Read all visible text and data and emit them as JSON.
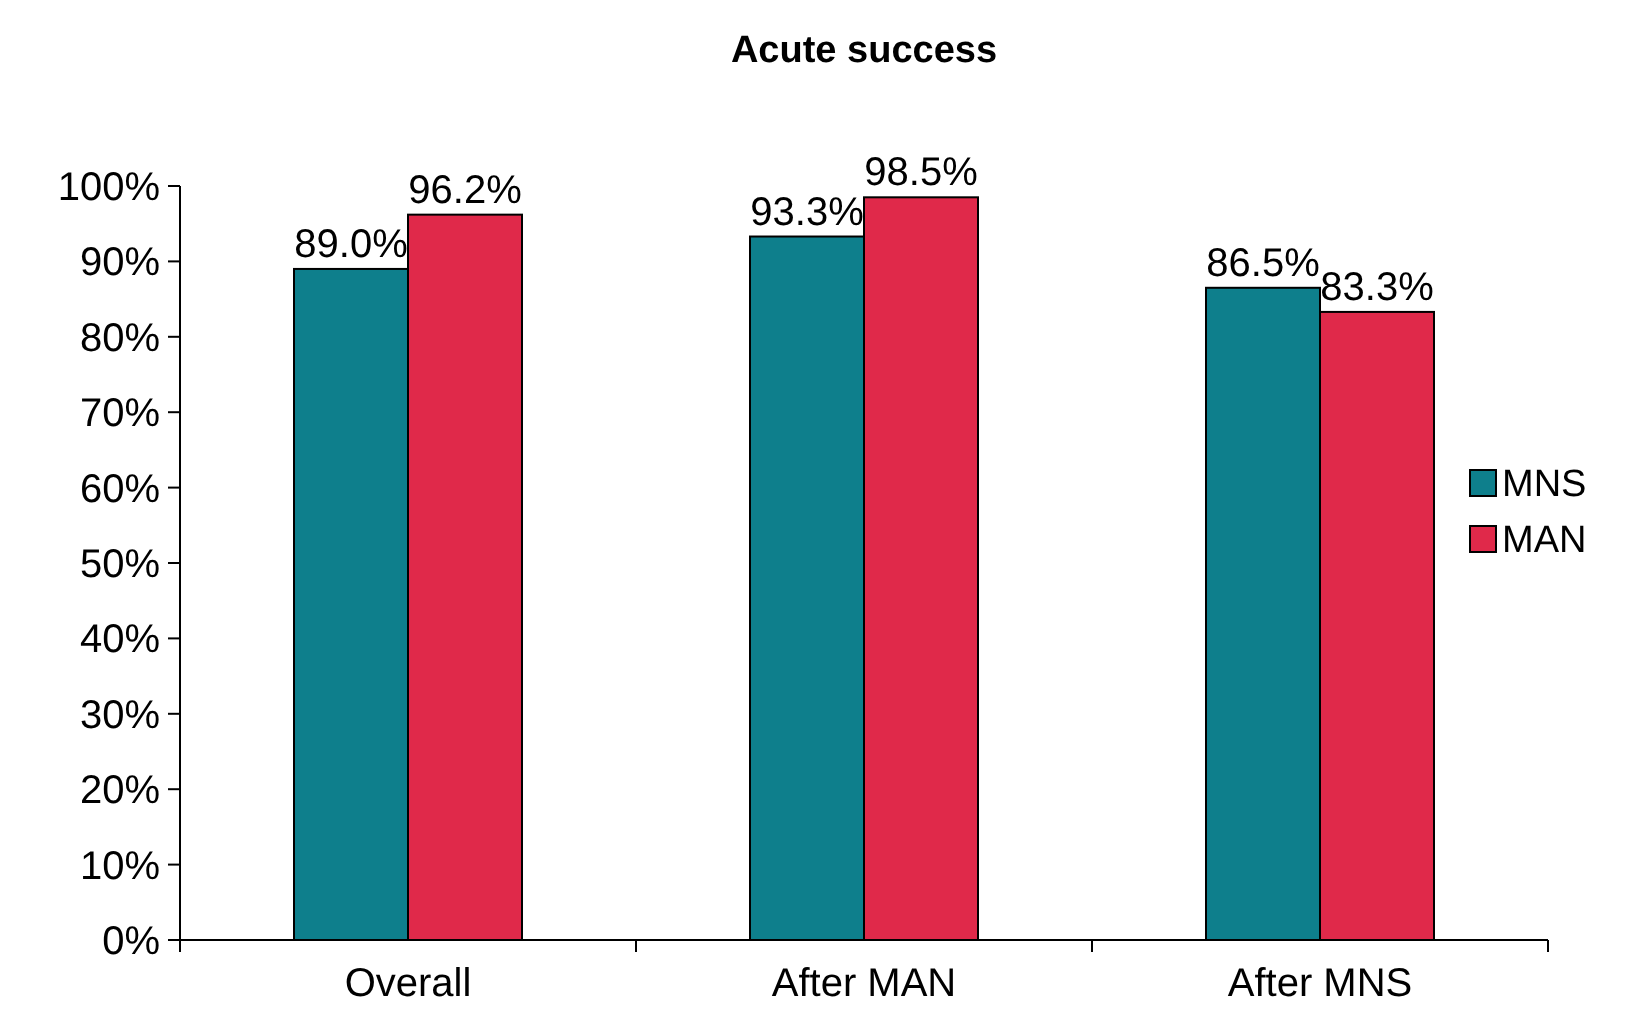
{
  "chart_data": {
    "type": "bar",
    "title": "Acute success",
    "categories": [
      "Overall",
      "After MAN",
      "After MNS"
    ],
    "series": [
      {
        "name": "MNS",
        "color": "#0e7f8c",
        "values": [
          89.0,
          93.3,
          86.5
        ],
        "value_labels": [
          "89.0%",
          "93.3%",
          "86.5%"
        ]
      },
      {
        "name": "MAN",
        "color": "#e0294a",
        "values": [
          96.2,
          98.5,
          83.3
        ],
        "value_labels": [
          "96.2%",
          "98.5%",
          "83.3%"
        ]
      }
    ],
    "ylim": [
      0,
      100
    ],
    "yticks": [
      {
        "value": 0,
        "label": "0%"
      },
      {
        "value": 10,
        "label": "10%"
      },
      {
        "value": 20,
        "label": "20%"
      },
      {
        "value": 30,
        "label": "30%"
      },
      {
        "value": 40,
        "label": "40%"
      },
      {
        "value": 50,
        "label": "50%"
      },
      {
        "value": 60,
        "label": "60%"
      },
      {
        "value": 70,
        "label": "70%"
      },
      {
        "value": 80,
        "label": "80%"
      },
      {
        "value": 90,
        "label": "90%"
      },
      {
        "value": 100,
        "label": "100%"
      }
    ],
    "grid": false,
    "legend": "right"
  }
}
